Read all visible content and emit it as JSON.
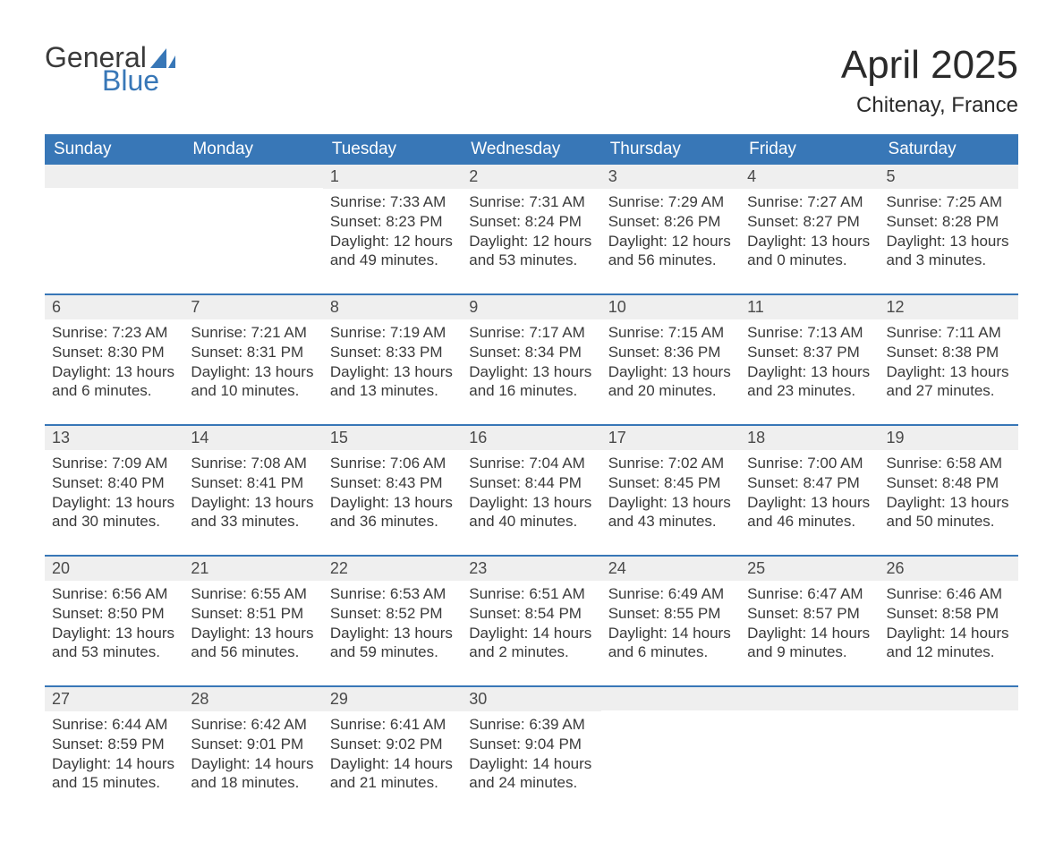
{
  "logo": {
    "line1": "General",
    "line2": "Blue"
  },
  "header": {
    "month_title": "April 2025",
    "location": "Chitenay, France"
  },
  "colors": {
    "header_bg": "#3877b7",
    "header_text": "#ffffff",
    "daynum_bg": "#efefef",
    "week_divider": "#3877b7",
    "body_text": "#3a3a3a",
    "logo_blue": "#3877b7",
    "page_bg": "#ffffff"
  },
  "typography": {
    "month_title_fontsize": 44,
    "location_fontsize": 24,
    "weekday_header_fontsize": 19,
    "daynum_fontsize": 18,
    "cell_fontsize": 17,
    "logo_fontsize": 32
  },
  "layout": {
    "columns": 7,
    "rows": 5,
    "leading_blanks": 2,
    "trailing_blanks": 3
  },
  "weekdays": [
    "Sunday",
    "Monday",
    "Tuesday",
    "Wednesday",
    "Thursday",
    "Friday",
    "Saturday"
  ],
  "days": [
    {
      "n": "1",
      "sunrise": "Sunrise: 7:33 AM",
      "sunset": "Sunset: 8:23 PM",
      "dl1": "Daylight: 12 hours",
      "dl2": "and 49 minutes."
    },
    {
      "n": "2",
      "sunrise": "Sunrise: 7:31 AM",
      "sunset": "Sunset: 8:24 PM",
      "dl1": "Daylight: 12 hours",
      "dl2": "and 53 minutes."
    },
    {
      "n": "3",
      "sunrise": "Sunrise: 7:29 AM",
      "sunset": "Sunset: 8:26 PM",
      "dl1": "Daylight: 12 hours",
      "dl2": "and 56 minutes."
    },
    {
      "n": "4",
      "sunrise": "Sunrise: 7:27 AM",
      "sunset": "Sunset: 8:27 PM",
      "dl1": "Daylight: 13 hours",
      "dl2": "and 0 minutes."
    },
    {
      "n": "5",
      "sunrise": "Sunrise: 7:25 AM",
      "sunset": "Sunset: 8:28 PM",
      "dl1": "Daylight: 13 hours",
      "dl2": "and 3 minutes."
    },
    {
      "n": "6",
      "sunrise": "Sunrise: 7:23 AM",
      "sunset": "Sunset: 8:30 PM",
      "dl1": "Daylight: 13 hours",
      "dl2": "and 6 minutes."
    },
    {
      "n": "7",
      "sunrise": "Sunrise: 7:21 AM",
      "sunset": "Sunset: 8:31 PM",
      "dl1": "Daylight: 13 hours",
      "dl2": "and 10 minutes."
    },
    {
      "n": "8",
      "sunrise": "Sunrise: 7:19 AM",
      "sunset": "Sunset: 8:33 PM",
      "dl1": "Daylight: 13 hours",
      "dl2": "and 13 minutes."
    },
    {
      "n": "9",
      "sunrise": "Sunrise: 7:17 AM",
      "sunset": "Sunset: 8:34 PM",
      "dl1": "Daylight: 13 hours",
      "dl2": "and 16 minutes."
    },
    {
      "n": "10",
      "sunrise": "Sunrise: 7:15 AM",
      "sunset": "Sunset: 8:36 PM",
      "dl1": "Daylight: 13 hours",
      "dl2": "and 20 minutes."
    },
    {
      "n": "11",
      "sunrise": "Sunrise: 7:13 AM",
      "sunset": "Sunset: 8:37 PM",
      "dl1": "Daylight: 13 hours",
      "dl2": "and 23 minutes."
    },
    {
      "n": "12",
      "sunrise": "Sunrise: 7:11 AM",
      "sunset": "Sunset: 8:38 PM",
      "dl1": "Daylight: 13 hours",
      "dl2": "and 27 minutes."
    },
    {
      "n": "13",
      "sunrise": "Sunrise: 7:09 AM",
      "sunset": "Sunset: 8:40 PM",
      "dl1": "Daylight: 13 hours",
      "dl2": "and 30 minutes."
    },
    {
      "n": "14",
      "sunrise": "Sunrise: 7:08 AM",
      "sunset": "Sunset: 8:41 PM",
      "dl1": "Daylight: 13 hours",
      "dl2": "and 33 minutes."
    },
    {
      "n": "15",
      "sunrise": "Sunrise: 7:06 AM",
      "sunset": "Sunset: 8:43 PM",
      "dl1": "Daylight: 13 hours",
      "dl2": "and 36 minutes."
    },
    {
      "n": "16",
      "sunrise": "Sunrise: 7:04 AM",
      "sunset": "Sunset: 8:44 PM",
      "dl1": "Daylight: 13 hours",
      "dl2": "and 40 minutes."
    },
    {
      "n": "17",
      "sunrise": "Sunrise: 7:02 AM",
      "sunset": "Sunset: 8:45 PM",
      "dl1": "Daylight: 13 hours",
      "dl2": "and 43 minutes."
    },
    {
      "n": "18",
      "sunrise": "Sunrise: 7:00 AM",
      "sunset": "Sunset: 8:47 PM",
      "dl1": "Daylight: 13 hours",
      "dl2": "and 46 minutes."
    },
    {
      "n": "19",
      "sunrise": "Sunrise: 6:58 AM",
      "sunset": "Sunset: 8:48 PM",
      "dl1": "Daylight: 13 hours",
      "dl2": "and 50 minutes."
    },
    {
      "n": "20",
      "sunrise": "Sunrise: 6:56 AM",
      "sunset": "Sunset: 8:50 PM",
      "dl1": "Daylight: 13 hours",
      "dl2": "and 53 minutes."
    },
    {
      "n": "21",
      "sunrise": "Sunrise: 6:55 AM",
      "sunset": "Sunset: 8:51 PM",
      "dl1": "Daylight: 13 hours",
      "dl2": "and 56 minutes."
    },
    {
      "n": "22",
      "sunrise": "Sunrise: 6:53 AM",
      "sunset": "Sunset: 8:52 PM",
      "dl1": "Daylight: 13 hours",
      "dl2": "and 59 minutes."
    },
    {
      "n": "23",
      "sunrise": "Sunrise: 6:51 AM",
      "sunset": "Sunset: 8:54 PM",
      "dl1": "Daylight: 14 hours",
      "dl2": "and 2 minutes."
    },
    {
      "n": "24",
      "sunrise": "Sunrise: 6:49 AM",
      "sunset": "Sunset: 8:55 PM",
      "dl1": "Daylight: 14 hours",
      "dl2": "and 6 minutes."
    },
    {
      "n": "25",
      "sunrise": "Sunrise: 6:47 AM",
      "sunset": "Sunset: 8:57 PM",
      "dl1": "Daylight: 14 hours",
      "dl2": "and 9 minutes."
    },
    {
      "n": "26",
      "sunrise": "Sunrise: 6:46 AM",
      "sunset": "Sunset: 8:58 PM",
      "dl1": "Daylight: 14 hours",
      "dl2": "and 12 minutes."
    },
    {
      "n": "27",
      "sunrise": "Sunrise: 6:44 AM",
      "sunset": "Sunset: 8:59 PM",
      "dl1": "Daylight: 14 hours",
      "dl2": "and 15 minutes."
    },
    {
      "n": "28",
      "sunrise": "Sunrise: 6:42 AM",
      "sunset": "Sunset: 9:01 PM",
      "dl1": "Daylight: 14 hours",
      "dl2": "and 18 minutes."
    },
    {
      "n": "29",
      "sunrise": "Sunrise: 6:41 AM",
      "sunset": "Sunset: 9:02 PM",
      "dl1": "Daylight: 14 hours",
      "dl2": "and 21 minutes."
    },
    {
      "n": "30",
      "sunrise": "Sunrise: 6:39 AM",
      "sunset": "Sunset: 9:04 PM",
      "dl1": "Daylight: 14 hours",
      "dl2": "and 24 minutes."
    }
  ]
}
